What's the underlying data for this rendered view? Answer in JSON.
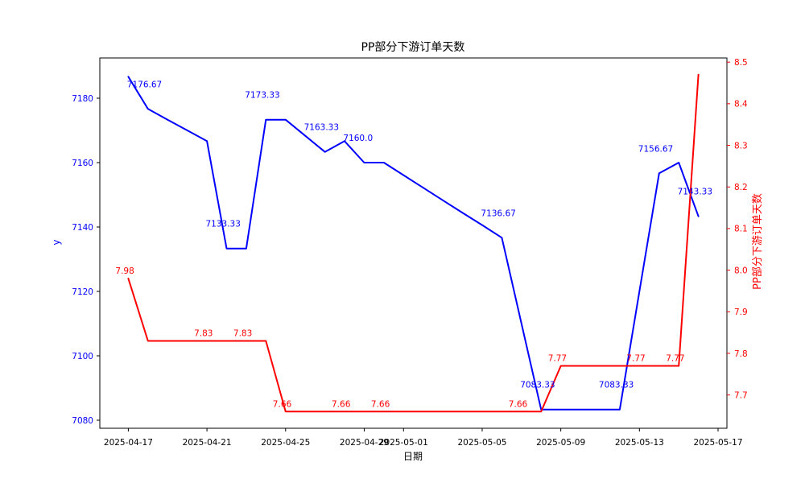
{
  "chart_data": {
    "type": "line",
    "title": "PP部分下游订单天数",
    "xlabel": "日期",
    "ylabel_left": "y",
    "ylabel_right": "PP部分下游订单天数",
    "grid": false,
    "legend": "none",
    "colors": {
      "left_series": "#0000ff",
      "right_series": "#ff0000",
      "axis": "#000000"
    },
    "x": [
      "2025-04-17",
      "2025-04-18",
      "2025-04-19",
      "2025-04-20",
      "2025-04-21",
      "2025-04-22",
      "2025-04-23",
      "2025-04-24",
      "2025-04-25",
      "2025-04-26",
      "2025-04-27",
      "2025-04-28",
      "2025-04-29",
      "2025-04-30",
      "2025-05-01",
      "2025-05-02",
      "2025-05-03",
      "2025-05-04",
      "2025-05-05",
      "2025-05-06",
      "2025-05-07",
      "2025-05-08",
      "2025-05-09",
      "2025-05-10",
      "2025-05-11",
      "2025-05-12",
      "2025-05-13",
      "2025-05-14",
      "2025-05-15",
      "2025-05-16"
    ],
    "x_tick_labels": [
      "2025-04-17",
      "2025-04-21",
      "2025-04-25",
      "2025-04-29",
      "2025-05-01",
      "2025-05-05",
      "2025-05-09",
      "2025-05-13",
      "2025-05-17"
    ],
    "y_left_ticks": [
      7080,
      7100,
      7120,
      7140,
      7160,
      7180
    ],
    "y_right_ticks": [
      7.7,
      7.8,
      7.9,
      8.0,
      8.1,
      8.2,
      8.3,
      8.4,
      8.5
    ],
    "ylim_left": [
      7077.5,
      7192.5
    ],
    "ylim_right": [
      7.62,
      8.51
    ],
    "xlim_days": [
      -1.45,
      30.45
    ],
    "series": [
      {
        "name": "y",
        "axis": "left",
        "color": "#0000ff",
        "label_offset": [
          -26,
          -27
        ],
        "values": [
          7186.67,
          7176.67,
          7173.33,
          7170,
          7166.67,
          7133.33,
          7133.33,
          7173.33,
          7173.33,
          7168.33,
          7163.33,
          7166.67,
          7160,
          7160,
          7156.1,
          7152.2,
          7148.3,
          7144.4,
          7140.6,
          7136.67,
          7110,
          7083.33,
          7083.33,
          7083.33,
          7083.33,
          7083.33,
          7120,
          7156.67,
          7160,
          7143.33
        ],
        "point_labels": [
          {
            "date": "2025-04-18",
            "value": 7176.67,
            "text": "7176.67"
          },
          {
            "date": "2025-04-22",
            "value": 7133.33,
            "text": "7133.33"
          },
          {
            "date": "2025-04-24",
            "value": 7173.33,
            "text": "7173.33"
          },
          {
            "date": "2025-04-27",
            "value": 7163.33,
            "text": "7163.33"
          },
          {
            "date": "2025-04-29",
            "value": 7160.0,
            "text": "7160.0"
          },
          {
            "date": "2025-05-06",
            "value": 7136.67,
            "text": "7136.67"
          },
          {
            "date": "2025-05-08",
            "value": 7083.33,
            "text": "7083.33"
          },
          {
            "date": "2025-05-12",
            "value": 7083.33,
            "text": "7083.33"
          },
          {
            "date": "2025-05-14",
            "value": 7156.67,
            "text": "7156.67"
          },
          {
            "date": "2025-05-16",
            "value": 7143.33,
            "text": "7143.33"
          }
        ]
      },
      {
        "name": "PP部分下游订单天数",
        "axis": "right",
        "color": "#ff0000",
        "label_offset": [
          -16,
          -6
        ],
        "values": [
          7.98,
          7.83,
          7.83,
          7.83,
          7.83,
          7.83,
          7.83,
          7.83,
          7.66,
          7.66,
          7.66,
          7.66,
          7.66,
          7.66,
          7.66,
          7.66,
          7.66,
          7.66,
          7.66,
          7.66,
          7.66,
          7.66,
          7.77,
          7.77,
          7.77,
          7.77,
          7.77,
          7.77,
          7.77,
          8.47
        ],
        "point_labels": [
          {
            "date": "2025-04-17",
            "value": 7.98,
            "text": "7.98"
          },
          {
            "date": "2025-04-21",
            "value": 7.83,
            "text": "7.83"
          },
          {
            "date": "2025-04-23",
            "value": 7.83,
            "text": "7.83"
          },
          {
            "date": "2025-04-25",
            "value": 7.66,
            "text": "7.66"
          },
          {
            "date": "2025-04-28",
            "value": 7.66,
            "text": "7.66"
          },
          {
            "date": "2025-04-30",
            "value": 7.66,
            "text": "7.66"
          },
          {
            "date": "2025-05-07",
            "value": 7.66,
            "text": "7.66"
          },
          {
            "date": "2025-05-09",
            "value": 7.77,
            "text": "7.77"
          },
          {
            "date": "2025-05-13",
            "value": 7.77,
            "text": "7.77"
          },
          {
            "date": "2025-05-15",
            "value": 7.77,
            "text": "7.77"
          }
        ]
      }
    ]
  }
}
